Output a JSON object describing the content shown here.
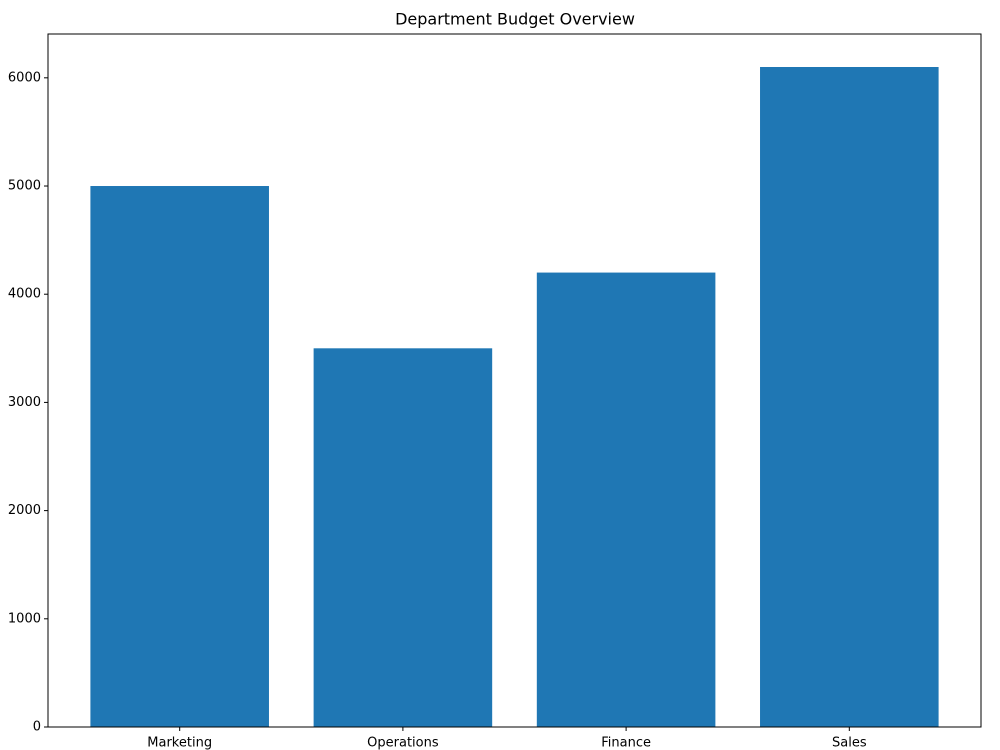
{
  "chart_data": {
    "type": "bar",
    "title": "Department Budget Overview",
    "categories": [
      "Marketing",
      "Operations",
      "Finance",
      "Sales"
    ],
    "values": [
      5000,
      3500,
      4200,
      6100
    ],
    "color": "#1f77b4",
    "ylim": [
      0,
      6405
    ],
    "yticks": [
      0,
      1000,
      2000,
      3000,
      4000,
      5000,
      6000
    ],
    "grid": false
  }
}
